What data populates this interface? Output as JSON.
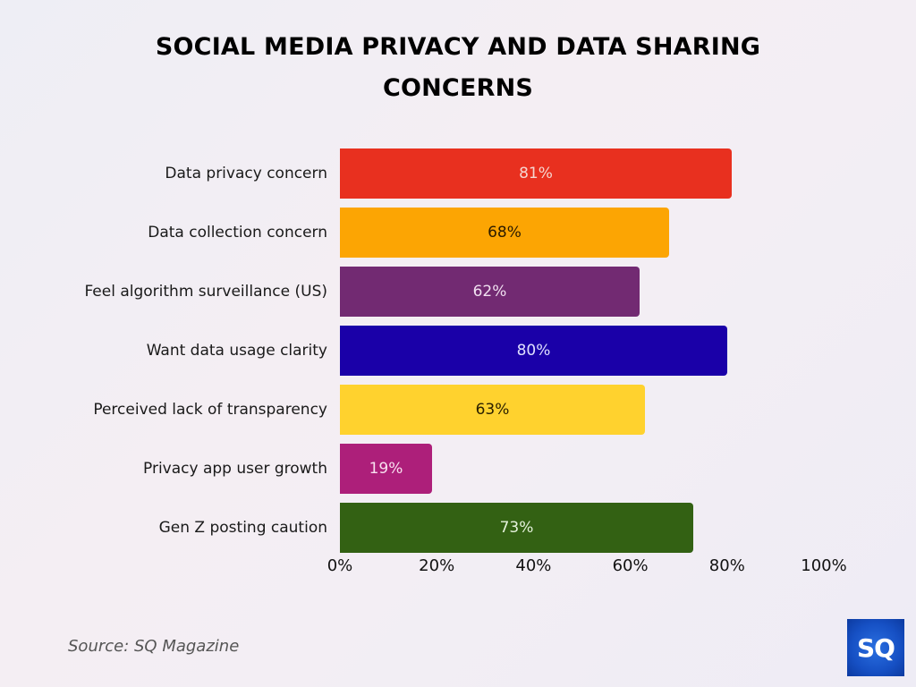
{
  "title": {
    "line1": "SOCIAL MEDIA PRIVACY AND DATA SHARING",
    "line2": "CONCERNS"
  },
  "source": "Source: SQ Magazine",
  "logo": {
    "text": "SQ",
    "color": "#1a56cc"
  },
  "axis": {
    "ticks": [
      "0%",
      "20%",
      "40%",
      "60%",
      "80%",
      "100%"
    ]
  },
  "rows": [
    {
      "label": "Data privacy concern",
      "value_label": "81%",
      "color": "#e8301f",
      "text_color": "#f5d6d0"
    },
    {
      "label": "Data collection concern",
      "value_label": "68%",
      "color": "#fca503",
      "text_color": "#2a1a00"
    },
    {
      "label": "Feel algorithm surveillance (US)",
      "value_label": "62%",
      "color": "#722a72",
      "text_color": "#f0e0f0"
    },
    {
      "label": "Want data usage clarity",
      "value_label": "80%",
      "color": "#1a00a8",
      "text_color": "#e0e0ff"
    },
    {
      "label": "Perceived lack of transparency",
      "value_label": "63%",
      "color": "#ffd22e",
      "text_color": "#2a2000"
    },
    {
      "label": "Privacy app user growth",
      "value_label": "19%",
      "color": "#ad1f7a",
      "text_color": "#f8e0ef"
    },
    {
      "label": "Gen Z posting caution",
      "value_label": "73%",
      "color": "#336113",
      "text_color": "#e5f2dc"
    }
  ],
  "chart_data": {
    "type": "bar",
    "orientation": "horizontal",
    "title": "SOCIAL MEDIA PRIVACY AND DATA SHARING CONCERNS",
    "categories": [
      "Data privacy concern",
      "Data collection concern",
      "Feel algorithm surveillance (US)",
      "Want data usage clarity",
      "Perceived lack of transparency",
      "Privacy app user growth",
      "Gen Z posting caution"
    ],
    "values": [
      81,
      68,
      62,
      80,
      63,
      19,
      73
    ],
    "colors": [
      "#e8301f",
      "#fca503",
      "#722a72",
      "#1a00a8",
      "#ffd22e",
      "#ad1f7a",
      "#336113"
    ],
    "xlabel": "",
    "ylabel": "",
    "xlim": [
      0,
      100
    ],
    "xticks": [
      "0%",
      "20%",
      "40%",
      "60%",
      "80%",
      "100%"
    ],
    "grid": false,
    "legend": null,
    "data_labels": true,
    "source": "Source: SQ Magazine"
  }
}
